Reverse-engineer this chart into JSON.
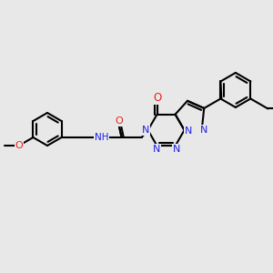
{
  "bg_color": "#e8e8e8",
  "bond_color": "#000000",
  "N_color": "#2020ee",
  "O_color": "#ee2020",
  "lw": 1.5,
  "fs": 7.5,
  "figsize": [
    3.0,
    3.0
  ],
  "dpi": 100,
  "xlim": [
    0,
    300
  ],
  "ylim": [
    0,
    300
  ]
}
